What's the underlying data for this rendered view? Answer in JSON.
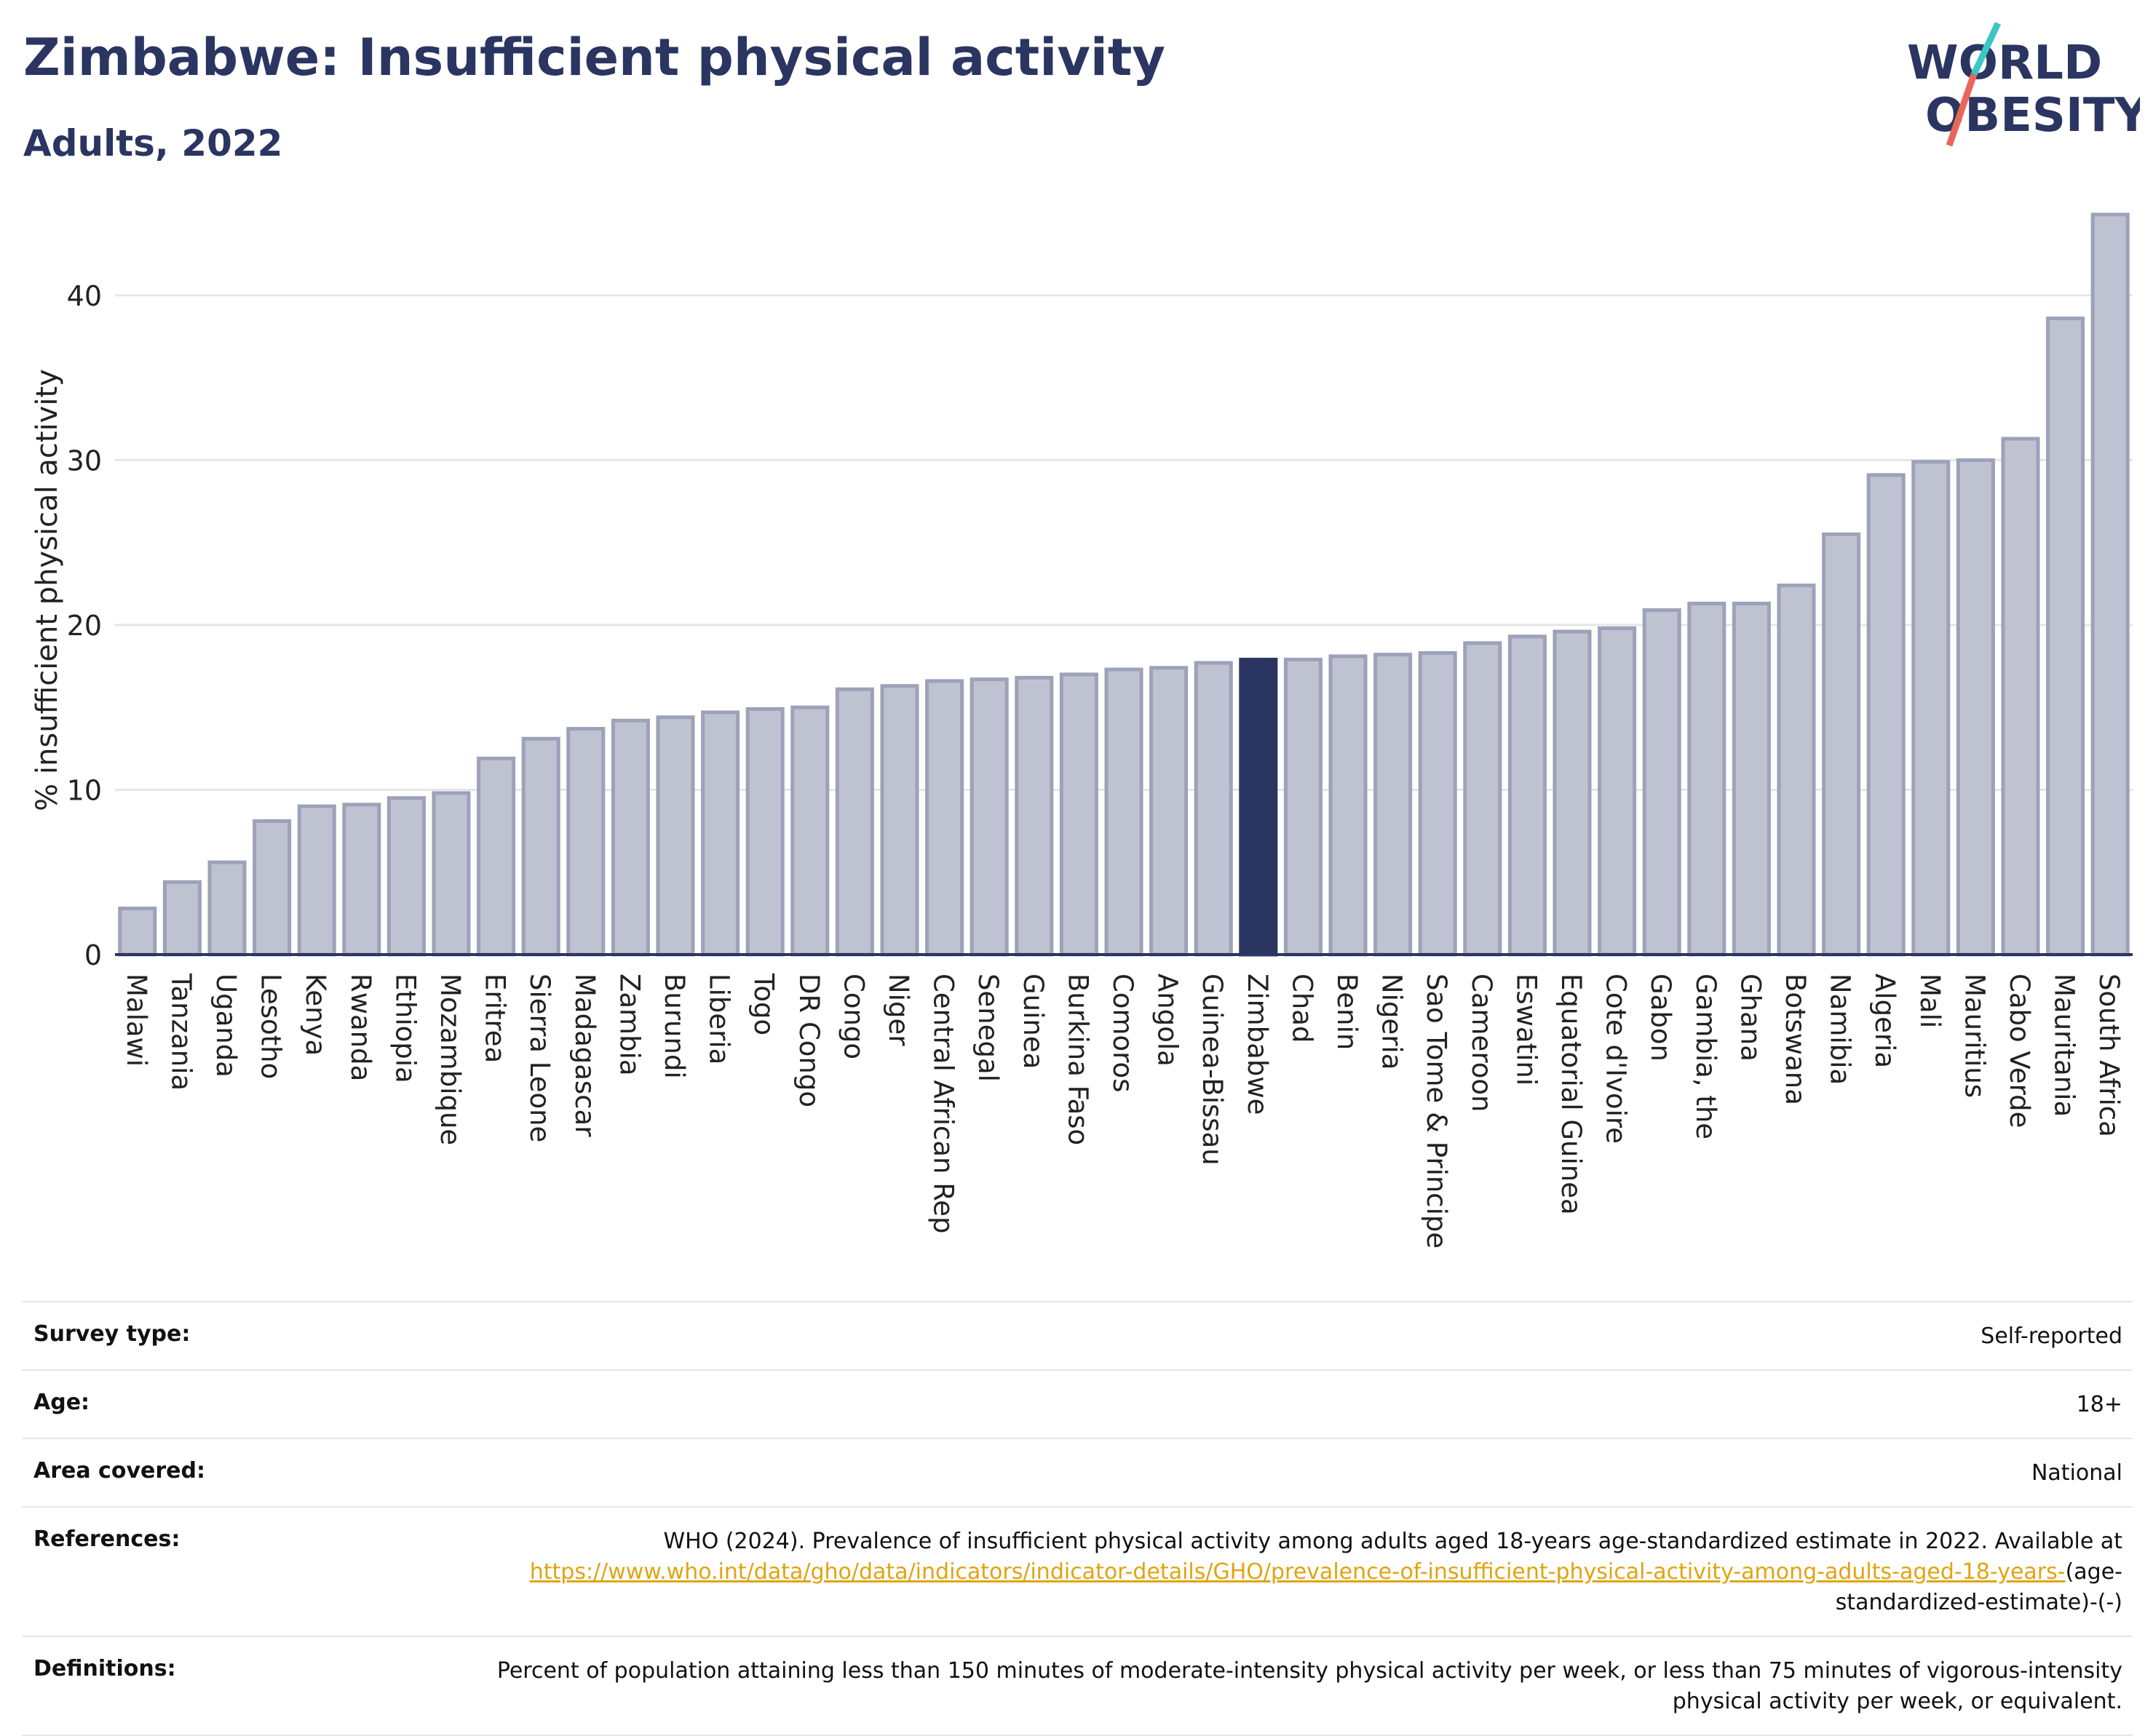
{
  "header": {
    "title": "Zimbabwe: Insufficient physical activity",
    "subtitle": "Adults, 2022"
  },
  "logo": {
    "line1": "WORLD",
    "line2": "OBESITY",
    "text_color": "#2a3561",
    "slash_color_top": "#3cc6c4",
    "slash_color_bottom": "#e8675a"
  },
  "colors": {
    "bar": "#bfc2d0",
    "bar_border": "#9da1b9",
    "highlight": "#2a3561",
    "grid": "#e6e6e6",
    "axis": "#2a3561"
  },
  "chart_data": {
    "type": "bar",
    "ylabel": "% insufficient physical activity",
    "xlabel": "",
    "ylim": [
      0,
      46
    ],
    "yticks": [
      0,
      10,
      20,
      30,
      40
    ],
    "grid": true,
    "highlight": "Zimbabwe",
    "categories": [
      "Malawi",
      "Tanzania",
      "Uganda",
      "Lesotho",
      "Kenya",
      "Rwanda",
      "Ethiopia",
      "Mozambique",
      "Eritrea",
      "Sierra Leone",
      "Madagascar",
      "Zambia",
      "Burundi",
      "Liberia",
      "Togo",
      "DR Congo",
      "Congo",
      "Niger",
      "Central African Rep",
      "Senegal",
      "Guinea",
      "Burkina Faso",
      "Comoros",
      "Angola",
      "Guinea-Bissau",
      "Zimbabwe",
      "Chad",
      "Benin",
      "Nigeria",
      "Sao Tome & Principe",
      "Cameroon",
      "Eswatini",
      "Equatorial Guinea",
      "Cote d'Ivoire",
      "Gabon",
      "Gambia, the",
      "Ghana",
      "Botswana",
      "Namibia",
      "Algeria",
      "Mali",
      "Mauritius",
      "Cabo Verde",
      "Mauritania",
      "South Africa"
    ],
    "values": [
      2.8,
      4.4,
      5.6,
      8.1,
      9.0,
      9.1,
      9.5,
      9.8,
      11.9,
      13.1,
      13.7,
      14.2,
      14.4,
      14.7,
      14.9,
      15.0,
      16.1,
      16.3,
      16.6,
      16.7,
      16.8,
      17.0,
      17.3,
      17.4,
      17.7,
      17.9,
      17.9,
      18.1,
      18.2,
      18.3,
      18.9,
      19.3,
      19.6,
      19.8,
      20.9,
      21.3,
      21.3,
      22.4,
      25.5,
      29.1,
      29.9,
      30.0,
      31.3,
      38.6,
      44.9
    ]
  },
  "details": {
    "survey_type_label": "Survey type:",
    "survey_type_value": "Self-reported",
    "age_label": "Age:",
    "age_value": "18+",
    "area_label": "Area covered:",
    "area_value": "National",
    "references_label": "References:",
    "references_text": "WHO (2024). Prevalence of insufficient physical activity among adults aged 18-years age-standardized estimate in 2022. Available at ",
    "references_link": "https://www.who.int/data/gho/data/indicators/indicator-details/GHO/prevalence-of-insufficient-physical-activity-among-adults-aged-18-years-",
    "references_suffix": "(age-standardized-estimate)-(-)",
    "definitions_label": "Definitions:",
    "definitions_value": "Percent of population attaining less than 150 minutes of moderate-intensity physical activity per week, or less than 75 minutes of vigorous-intensity physical activity per week, or equivalent."
  }
}
